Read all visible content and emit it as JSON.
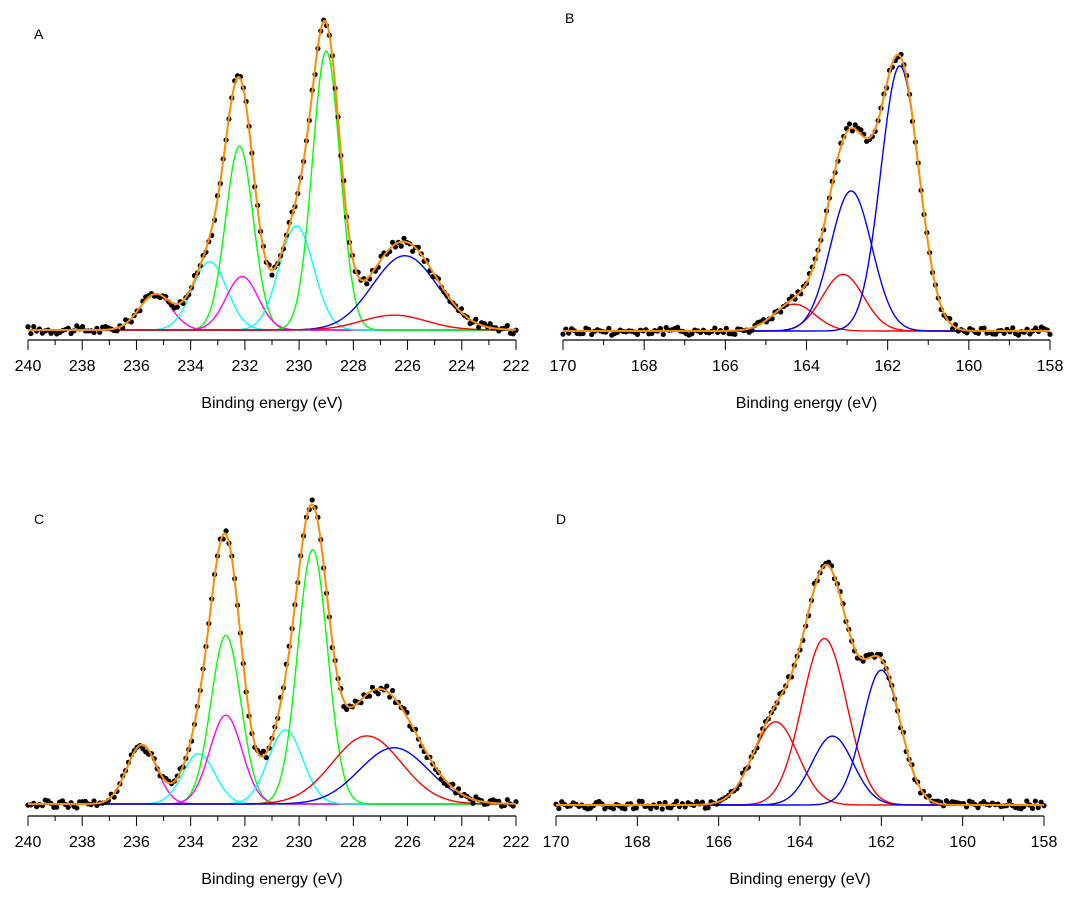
{
  "chart_data": [
    {
      "panel_label": "A",
      "type": "line",
      "xlabel": "Binding energy (eV)",
      "ylabel": "",
      "xlim": [
        240,
        222
      ],
      "ylim": [
        0,
        1.0
      ],
      "x_reversed": true,
      "xticks": [
        240,
        238,
        236,
        234,
        232,
        230,
        228,
        226,
        224,
        222
      ],
      "grid": false,
      "legend": "none",
      "series": [
        {
          "color": "#ff00ff",
          "peaks": [
            {
              "center": 235.3,
              "height": 0.12,
              "fwhm": 1.4
            }
          ]
        },
        {
          "color": "#00ffff",
          "peaks": [
            {
              "center": 233.3,
              "height": 0.23,
              "fwhm": 1.5
            }
          ]
        },
        {
          "color": "#00ff00",
          "peaks": [
            {
              "center": 232.2,
              "height": 0.62,
              "fwhm": 1.2
            }
          ]
        },
        {
          "color": "#ff00ff",
          "peaks": [
            {
              "center": 232.1,
              "height": 0.18,
              "fwhm": 1.4
            }
          ]
        },
        {
          "color": "#00ffff",
          "peaks": [
            {
              "center": 230.1,
              "height": 0.35,
              "fwhm": 1.5
            }
          ]
        },
        {
          "color": "#00ff00",
          "peaks": [
            {
              "center": 229.0,
              "height": 0.94,
              "fwhm": 1.2
            }
          ]
        },
        {
          "color": "#0000ff",
          "peaks": [
            {
              "center": 226.1,
              "height": 0.25,
              "fwhm": 2.8
            }
          ]
        },
        {
          "color": "#ff0000",
          "peaks": [
            {
              "center": 226.5,
              "height": 0.05,
              "fwhm": 2.8
            }
          ]
        }
      ],
      "envelope_color": "#ff8c00",
      "data_color": "#000000"
    },
    {
      "panel_label": "B",
      "type": "line",
      "xlabel": "Binding energy (eV)",
      "ylabel": "",
      "xlim": [
        170,
        158
      ],
      "ylim": [
        0,
        1.0
      ],
      "x_reversed": true,
      "xticks": [
        170,
        168,
        166,
        164,
        162,
        160,
        158
      ],
      "grid": false,
      "legend": "none",
      "series": [
        {
          "color": "#ff0000",
          "peaks": [
            {
              "center": 164.3,
              "height": 0.09,
              "fwhm": 1.2
            }
          ]
        },
        {
          "color": "#ff0000",
          "peaks": [
            {
              "center": 163.1,
              "height": 0.19,
              "fwhm": 1.2
            }
          ]
        },
        {
          "color": "#0000ff",
          "peaks": [
            {
              "center": 162.9,
              "height": 0.47,
              "fwhm": 1.2
            }
          ]
        },
        {
          "color": "#0000ff",
          "peaks": [
            {
              "center": 161.7,
              "height": 0.89,
              "fwhm": 1.1
            }
          ]
        }
      ],
      "envelope_color": "#ff8c00",
      "data_color": "#000000"
    },
    {
      "panel_label": "C",
      "type": "line",
      "xlabel": "Binding energy (eV)",
      "ylabel": "",
      "xlim": [
        240,
        222
      ],
      "ylim": [
        0,
        1.0
      ],
      "x_reversed": true,
      "xticks": [
        240,
        238,
        236,
        234,
        232,
        230,
        228,
        226,
        224,
        222
      ],
      "grid": false,
      "legend": "none",
      "series": [
        {
          "color": "#ff00ff",
          "peaks": [
            {
              "center": 235.8,
              "height": 0.2,
              "fwhm": 1.3
            }
          ]
        },
        {
          "color": "#00ffff",
          "peaks": [
            {
              "center": 233.7,
              "height": 0.17,
              "fwhm": 1.4
            }
          ]
        },
        {
          "color": "#00ff00",
          "peaks": [
            {
              "center": 232.7,
              "height": 0.57,
              "fwhm": 1.3
            }
          ]
        },
        {
          "color": "#ff00ff",
          "peaks": [
            {
              "center": 232.7,
              "height": 0.3,
              "fwhm": 1.4
            }
          ]
        },
        {
          "color": "#00ffff",
          "peaks": [
            {
              "center": 230.5,
              "height": 0.25,
              "fwhm": 1.5
            }
          ]
        },
        {
          "color": "#00ff00",
          "peaks": [
            {
              "center": 229.5,
              "height": 0.86,
              "fwhm": 1.3
            }
          ]
        },
        {
          "color": "#ff0000",
          "peaks": [
            {
              "center": 227.5,
              "height": 0.23,
              "fwhm": 3.0
            }
          ]
        },
        {
          "color": "#0000ff",
          "peaks": [
            {
              "center": 226.5,
              "height": 0.19,
              "fwhm": 3.0
            }
          ]
        }
      ],
      "envelope_color": "#ff8c00",
      "data_color": "#000000"
    },
    {
      "panel_label": "D",
      "type": "line",
      "xlabel": "Binding energy (eV)",
      "ylabel": "",
      "xlim": [
        170,
        158
      ],
      "ylim": [
        0,
        1.0
      ],
      "x_reversed": true,
      "xticks": [
        170,
        168,
        166,
        164,
        162,
        160,
        158
      ],
      "grid": false,
      "legend": "none",
      "series": [
        {
          "color": "#ff0000",
          "peaks": [
            {
              "center": 164.6,
              "height": 0.29,
              "fwhm": 1.3
            }
          ]
        },
        {
          "color": "#ff0000",
          "peaks": [
            {
              "center": 163.4,
              "height": 0.58,
              "fwhm": 1.3
            }
          ]
        },
        {
          "color": "#0000ff",
          "peaks": [
            {
              "center": 163.2,
              "height": 0.24,
              "fwhm": 1.2
            }
          ]
        },
        {
          "color": "#0000ff",
          "peaks": [
            {
              "center": 162.0,
              "height": 0.47,
              "fwhm": 1.1
            }
          ]
        }
      ],
      "envelope_color": "#ff8c00",
      "data_color": "#000000"
    }
  ]
}
